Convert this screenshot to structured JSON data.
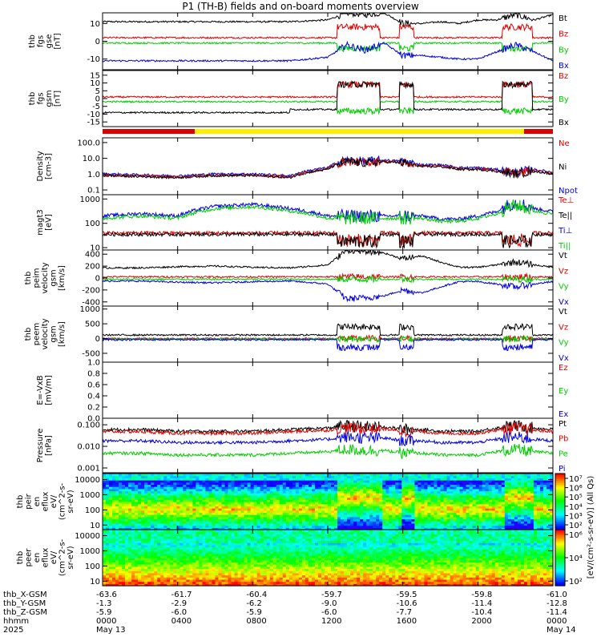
{
  "title": "P1 (TH-B) fields and on-board moments overview",
  "panels": [
    {
      "id": "fgs_bt",
      "ylabel": [
        "thb",
        "fgs",
        "gse",
        "[nT]"
      ],
      "ticks": [
        "10",
        "0",
        "-10"
      ],
      "tickvals": [
        10,
        0,
        -10
      ],
      "range": [
        -16,
        16
      ],
      "legend": [
        {
          "text": "Bt",
          "color": "#000000"
        },
        {
          "text": "Bz",
          "color": "#dd0000"
        },
        {
          "text": "By",
          "color": "#00cc00"
        },
        {
          "text": "Bx",
          "color": "#0000dd"
        }
      ]
    },
    {
      "id": "fgs_gsm",
      "ylabel": [
        "thb",
        "fgs",
        "gsm",
        "[nT]"
      ],
      "ticks": [
        "15",
        "10",
        "5",
        "0",
        "-5",
        "-10",
        "-15"
      ],
      "tickvals": [
        15,
        10,
        5,
        0,
        -5,
        -10,
        -15
      ],
      "range": [
        -18,
        18
      ],
      "legend": [
        {
          "text": "Bz",
          "color": "#dd0000"
        },
        {
          "text": "By",
          "color": "#00cc00"
        },
        {
          "text": "Bx",
          "color": "#000000"
        }
      ]
    },
    {
      "id": "density",
      "ylabel": [
        "Density",
        "[cm-3]"
      ],
      "ticks": [
        "100.0",
        "10.0",
        "1.0",
        "0.1"
      ],
      "tickvals": [
        100,
        10,
        1,
        0.1
      ],
      "log": true,
      "range": [
        0.05,
        200
      ],
      "legend": [
        {
          "text": "Ne",
          "color": "#dd0000"
        },
        {
          "text": "Ni",
          "color": "#000000"
        },
        {
          "text": "Npot",
          "color": "#0000dd"
        }
      ]
    },
    {
      "id": "temperature",
      "ylabel": [
        "magt3",
        "[eV]"
      ],
      "ticks": [
        "1000",
        "100",
        "10"
      ],
      "tickvals": [
        1000,
        100,
        10
      ],
      "log": true,
      "range": [
        8,
        1500
      ],
      "legend": [
        {
          "text": "Te⊥",
          "color": "#dd0000"
        },
        {
          "text": "Te||",
          "color": "#000000"
        },
        {
          "text": "Ti⊥",
          "color": "#0000dd"
        },
        {
          "text": "Ti||",
          "color": "#00cc00"
        }
      ]
    },
    {
      "id": "peim_vel",
      "ylabel": [
        "thb",
        "peim",
        "velocity",
        "gsm",
        "[km/s]"
      ],
      "ticks": [
        "400",
        "200",
        "0",
        "-200",
        "-400"
      ],
      "tickvals": [
        400,
        200,
        0,
        -200,
        -400
      ],
      "range": [
        -470,
        470
      ],
      "legend": [
        {
          "text": "Vt",
          "color": "#000000"
        },
        {
          "text": "Vz",
          "color": "#dd0000"
        },
        {
          "text": "Vy",
          "color": "#00cc00"
        },
        {
          "text": "Vx",
          "color": "#0000dd"
        }
      ]
    },
    {
      "id": "peem_vel",
      "ylabel": [
        "thb",
        "peem",
        "velocity",
        "gsm",
        "[km/s]"
      ],
      "ticks": [
        "1000",
        "500",
        "0",
        "-500"
      ],
      "tickvals": [
        1000,
        500,
        0,
        -500
      ],
      "range": [
        -800,
        1100
      ],
      "legend": [
        {
          "text": "Vt",
          "color": "#000000"
        },
        {
          "text": "Vz",
          "color": "#dd0000"
        },
        {
          "text": "Vy",
          "color": "#00cc00"
        },
        {
          "text": "Vx",
          "color": "#0000dd"
        }
      ]
    },
    {
      "id": "efield",
      "ylabel": [
        "E=-VxB",
        "[mV/m]"
      ],
      "ticks": [
        "1.0",
        "0.8",
        "0.6",
        "0.4",
        "0.2",
        "0.0"
      ],
      "tickvals": [
        1,
        0.8,
        0.6,
        0.4,
        0.2,
        0
      ],
      "range": [
        0,
        1
      ],
      "legend": [
        {
          "text": "Ez",
          "color": "#dd0000"
        },
        {
          "text": "Ey",
          "color": "#00cc00"
        },
        {
          "text": "Ex",
          "color": "#0000dd"
        }
      ]
    },
    {
      "id": "pressure",
      "ylabel": [
        "Pressure",
        "[nPa]"
      ],
      "ticks": [
        "0.100",
        "0.010",
        "0.001"
      ],
      "tickvals": [
        0.1,
        0.01,
        0.001
      ],
      "log": true,
      "range": [
        0.0006,
        0.2
      ],
      "legend": [
        {
          "text": "Pt",
          "color": "#000000"
        },
        {
          "text": "Pb",
          "color": "#dd0000"
        },
        {
          "text": "Pe",
          "color": "#00cc00"
        },
        {
          "text": "Pi",
          "color": "#0000dd"
        }
      ]
    },
    {
      "id": "peir_eflux",
      "ylabel": [
        "thb",
        "peir",
        "en",
        "eflux",
        "eV/",
        "(cm^2-s-",
        "sr-eV)"
      ],
      "ticks": [
        "10000",
        "1000",
        "100",
        "10"
      ],
      "tickvals": [
        10000,
        1000,
        100,
        10
      ],
      "log": true,
      "range": [
        5,
        25000
      ],
      "legend": []
    },
    {
      "id": "peer_eflux",
      "ylabel": [
        "thb",
        "peer",
        "en",
        "eflux",
        "eV/",
        "(cm^2-s-",
        "sr-eV)"
      ],
      "ticks": [
        "10000",
        "1000",
        "100",
        "10"
      ],
      "tickvals": [
        10000,
        1000,
        100,
        10
      ],
      "log": true,
      "range": [
        5,
        25000
      ],
      "legend": []
    }
  ],
  "colorbar1": {
    "ticks": [
      "10⁷",
      "10⁶",
      "10⁵",
      "10⁴",
      "10³",
      "10²"
    ],
    "label": "[eV/(cm²-s-sr-eV)] (All Qs)"
  },
  "colorbar2": {
    "ticks": [
      "10⁶",
      "10⁴",
      "10²"
    ]
  },
  "ephemeris": {
    "labels": [
      "thb_X-GSM",
      "thb_Y-GSM",
      "thb_Z-GSM",
      "hhmm",
      "2025"
    ],
    "columns": [
      {
        "x": "-63.6",
        "y": "-1.3",
        "z": "-5.9",
        "t": "0000",
        "d": "May 13"
      },
      {
        "x": "-61.7",
        "y": "-2.9",
        "z": "-6.0",
        "t": "0400",
        "d": ""
      },
      {
        "x": "-60.4",
        "y": "-6.2",
        "z": "-5.9",
        "t": "0800",
        "d": ""
      },
      {
        "x": "-59.7",
        "y": "-9.0",
        "z": "-6.0",
        "t": "1200",
        "d": ""
      },
      {
        "x": "-59.5",
        "y": "-10.6",
        "z": "-7.7",
        "t": "1600",
        "d": ""
      },
      {
        "x": "-59.8",
        "y": "-11.4",
        "z": "-10.4",
        "t": "2000",
        "d": ""
      },
      {
        "x": "-61.0",
        "y": "-12.8",
        "z": "-11.4",
        "t": "0000",
        "d": "May 14"
      }
    ]
  },
  "chart_data": {
    "type": "line",
    "title": "P1 (TH-B) fields and on-board moments overview",
    "x_hours": [
      0,
      2,
      4,
      6,
      8,
      10,
      12,
      13,
      14,
      15,
      16,
      17,
      18,
      19,
      20,
      21,
      22,
      23,
      24
    ],
    "series": [
      {
        "name": "Bt",
        "values": [
          11,
          11,
          11,
          11,
          11,
          11,
          12,
          16,
          15,
          16,
          10,
          10,
          11,
          10,
          12,
          12,
          15,
          12,
          15
        ]
      },
      {
        "name": "Bx",
        "values": [
          -11,
          -11,
          -11,
          -11,
          -11,
          -11,
          -9,
          -2,
          -5,
          -1,
          -8,
          -8,
          -9,
          -10,
          -10,
          -6,
          -2,
          -6,
          -11
        ]
      },
      {
        "name": "Ni",
        "values": [
          0.8,
          0.7,
          0.6,
          0.8,
          0.8,
          0.6,
          2,
          6,
          5,
          6,
          5,
          3,
          3,
          2,
          2,
          1.5,
          1,
          1.5,
          1
        ]
      },
      {
        "name": "Ti⊥",
        "values": [
          200,
          250,
          200,
          500,
          600,
          400,
          200,
          200,
          200,
          200,
          200,
          200,
          150,
          150,
          200,
          300,
          700,
          400,
          300
        ]
      },
      {
        "name": "Vx",
        "values": [
          -50,
          -50,
          -70,
          -80,
          -60,
          -50,
          -100,
          -350,
          -330,
          -300,
          -200,
          -250,
          -150,
          -60,
          -60,
          -100,
          -150,
          -100,
          -60
        ]
      },
      {
        "name": "Pt",
        "values": [
          0.06,
          0.06,
          0.05,
          0.05,
          0.05,
          0.06,
          0.07,
          0.09,
          0.08,
          0.08,
          0.06,
          0.06,
          0.05,
          0.05,
          0.05,
          0.07,
          0.09,
          0.07,
          0.06
        ]
      }
    ]
  }
}
